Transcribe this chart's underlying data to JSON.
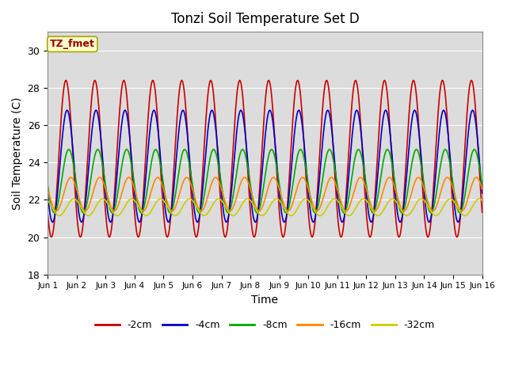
{
  "title": "Tonzi Soil Temperature Set D",
  "xlabel": "Time",
  "ylabel": "Soil Temperature (C)",
  "ylim": [
    18,
    31
  ],
  "xlim": [
    0,
    15
  ],
  "background_color": "#dcdcdc",
  "annotation_text": "TZ_fmet",
  "annotation_bg": "#ffffcc",
  "annotation_border": "#aaaa00",
  "series_order": [
    "-2cm",
    "-4cm",
    "-8cm",
    "-16cm",
    "-32cm"
  ],
  "series": {
    "-2cm": {
      "color": "#cc0000",
      "amplitude": 4.2,
      "baseline": 24.2,
      "phase_shift": 0.38,
      "noise": 0.0
    },
    "-4cm": {
      "color": "#0000cc",
      "amplitude": 3.0,
      "baseline": 23.8,
      "phase_shift": 0.42,
      "noise": 0.0
    },
    "-8cm": {
      "color": "#00aa00",
      "amplitude": 1.7,
      "baseline": 23.0,
      "phase_shift": 0.48,
      "noise": 0.0
    },
    "-16cm": {
      "color": "#ff8800",
      "amplitude": 0.9,
      "baseline": 22.3,
      "phase_shift": 0.55,
      "noise": 0.0
    },
    "-32cm": {
      "color": "#cccc00",
      "amplitude": 0.45,
      "baseline": 21.6,
      "phase_shift": 0.65,
      "noise": 0.0
    }
  },
  "xtick_labels": [
    "Jun 1",
    "Jun 2",
    "Jun 3",
    "Jun 4",
    "Jun 5",
    "Jun 6",
    "Jun 7",
    "Jun 8",
    "Jun 9",
    "Jun 10",
    "Jun 11",
    "Jun 12",
    "Jun 13",
    "Jun 14",
    "Jun 15",
    "Jun 16"
  ],
  "ytick_labels": [
    18,
    20,
    22,
    24,
    26,
    28,
    30
  ],
  "legend_labels": [
    "-2cm",
    "-4cm",
    "-8cm",
    "-16cm",
    "-32cm"
  ],
  "legend_colors": [
    "#cc0000",
    "#0000cc",
    "#00aa00",
    "#ff8800",
    "#cccc00"
  ],
  "figwidth": 6.4,
  "figheight": 4.8,
  "dpi": 100
}
